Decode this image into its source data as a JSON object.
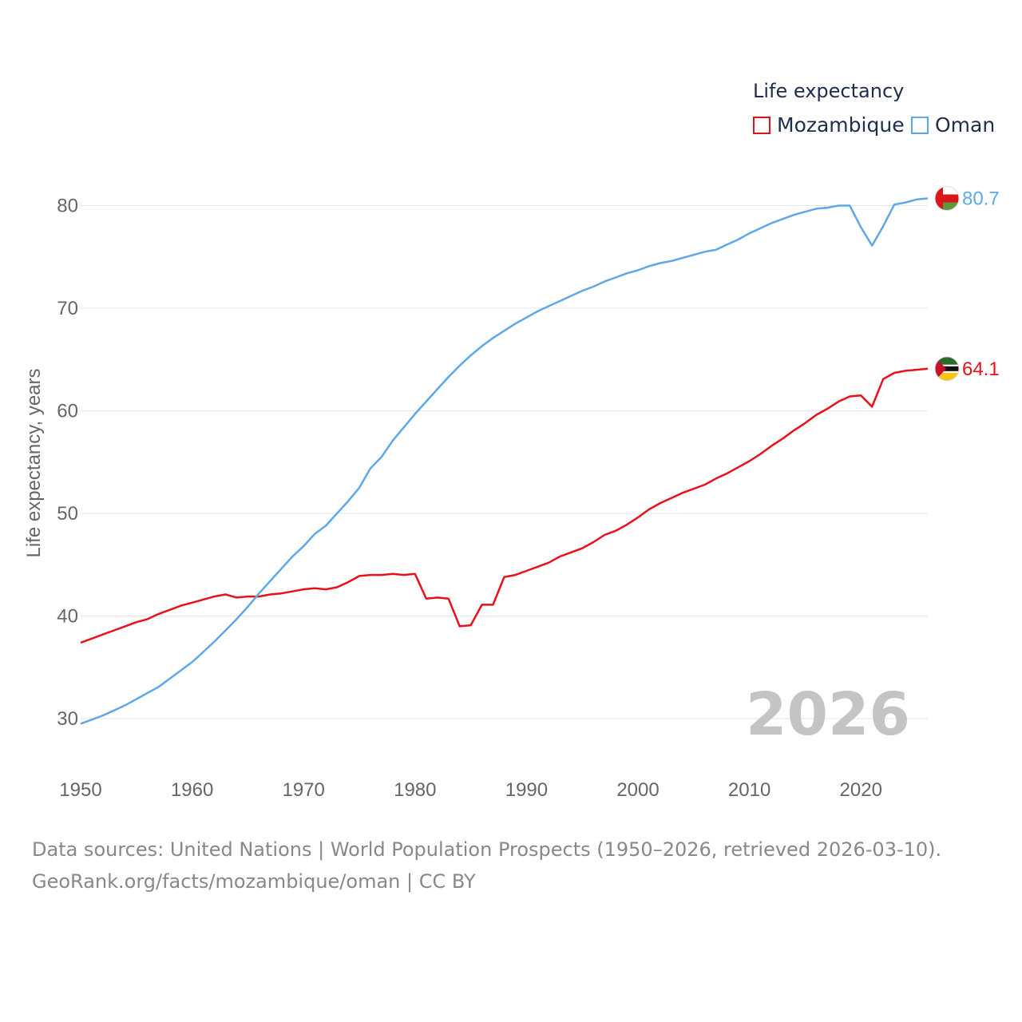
{
  "colors": {
    "mozambique": "#e8111a",
    "oman": "#5ea8e8",
    "grid": "#e6e6e6",
    "axis_text": "#666666",
    "year_watermark": "#c4c4c4"
  },
  "legend": {
    "title": "Life expectancy",
    "items": [
      {
        "label": "Mozambique",
        "color": "#e8111a"
      },
      {
        "label": "Oman",
        "color": "#5ea8e8"
      }
    ]
  },
  "chart_data": {
    "type": "line",
    "title": "Life expectancy",
    "ylabel": "Life expectancy, years",
    "xlabel": "",
    "xlim": [
      1950,
      2026
    ],
    "ylim": [
      25,
      85
    ],
    "xticks": [
      "1950",
      "1960",
      "1970",
      "1980",
      "1990",
      "2000",
      "2010",
      "2020"
    ],
    "yticks": [
      "30",
      "40",
      "50",
      "60",
      "70",
      "80"
    ],
    "current_year": "2026",
    "x": [
      1950,
      1951,
      1952,
      1953,
      1954,
      1955,
      1956,
      1957,
      1958,
      1959,
      1960,
      1961,
      1962,
      1963,
      1964,
      1965,
      1966,
      1967,
      1968,
      1969,
      1970,
      1971,
      1972,
      1973,
      1974,
      1975,
      1976,
      1977,
      1978,
      1979,
      1980,
      1981,
      1982,
      1983,
      1984,
      1985,
      1986,
      1987,
      1988,
      1989,
      1990,
      1991,
      1992,
      1993,
      1994,
      1995,
      1996,
      1997,
      1998,
      1999,
      2000,
      2001,
      2002,
      2003,
      2004,
      2005,
      2006,
      2007,
      2008,
      2009,
      2010,
      2011,
      2012,
      2013,
      2014,
      2015,
      2016,
      2017,
      2018,
      2019,
      2020,
      2021,
      2022,
      2023,
      2024,
      2025,
      2026
    ],
    "series": [
      {
        "name": "Mozambique",
        "color": "#e8111a",
        "end_label": "64.1",
        "flag": "mozambique-flag",
        "values": [
          37.4,
          37.8,
          38.2,
          38.6,
          39.0,
          39.4,
          39.7,
          40.2,
          40.6,
          41.0,
          41.3,
          41.6,
          41.9,
          42.1,
          41.8,
          41.9,
          41.9,
          42.1,
          42.2,
          42.4,
          42.6,
          42.7,
          42.6,
          42.8,
          43.3,
          43.9,
          44.0,
          44.0,
          44.1,
          44.0,
          44.1,
          41.7,
          41.8,
          41.7,
          39.0,
          39.1,
          41.1,
          41.1,
          43.8,
          44.0,
          44.4,
          44.8,
          45.2,
          45.8,
          46.2,
          46.6,
          47.2,
          47.9,
          48.3,
          48.9,
          49.6,
          50.4,
          51.0,
          51.5,
          52.0,
          52.4,
          52.8,
          53.4,
          53.9,
          54.5,
          55.1,
          55.8,
          56.6,
          57.3,
          58.1,
          58.8,
          59.6,
          60.2,
          60.9,
          61.4,
          61.5,
          60.4,
          63.1,
          63.7,
          63.9,
          64.0,
          64.1
        ]
      },
      {
        "name": "Oman",
        "color": "#5ea8e8",
        "end_label": "80.7",
        "flag": "oman-flag",
        "values": [
          29.5,
          29.9,
          30.3,
          30.8,
          31.3,
          31.9,
          32.5,
          33.1,
          33.9,
          34.7,
          35.5,
          36.5,
          37.5,
          38.6,
          39.7,
          40.9,
          42.2,
          43.4,
          44.6,
          45.8,
          46.8,
          48.0,
          48.8,
          50.0,
          51.2,
          52.5,
          54.4,
          55.5,
          57.1,
          58.4,
          59.7,
          60.9,
          62.1,
          63.3,
          64.4,
          65.4,
          66.3,
          67.1,
          67.8,
          68.5,
          69.1,
          69.7,
          70.2,
          70.7,
          71.2,
          71.7,
          72.1,
          72.6,
          73.0,
          73.4,
          73.7,
          74.1,
          74.4,
          74.6,
          74.9,
          75.2,
          75.5,
          75.7,
          76.2,
          76.7,
          77.3,
          77.8,
          78.3,
          78.7,
          79.1,
          79.4,
          79.7,
          79.8,
          80.0,
          80.0,
          77.9,
          76.1,
          78.0,
          80.1,
          80.3,
          80.6,
          80.7
        ]
      }
    ]
  },
  "footer": {
    "line1": "Data sources: United Nations | World Population Prospects (1950–2026, retrieved 2026-03-10).",
    "line2": "GeoRank.org/facts/mozambique/oman | CC BY"
  }
}
